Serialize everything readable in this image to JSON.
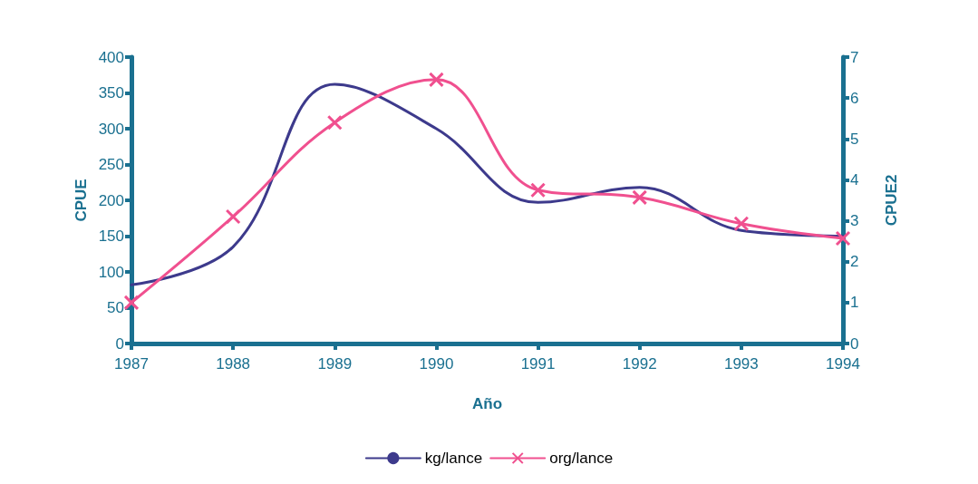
{
  "chart_data": {
    "type": "line",
    "xlabel": "Año",
    "ylabel": "CPUE",
    "y2label": "CPUE2",
    "categories": [
      "1987",
      "1988",
      "1989",
      "1990",
      "1991",
      "1992",
      "1993",
      "1994"
    ],
    "series": [
      {
        "name": "kg/lance",
        "color": "#3d3a8c",
        "marker": "none",
        "values": [
          82,
          135,
          362,
          300,
          197,
          218,
          158,
          150
        ]
      },
      {
        "name": "org/lance",
        "color": "#f0508f",
        "marker": "cross",
        "axis": "y2",
        "values": [
          1.0,
          3.1,
          5.4,
          6.45,
          3.75,
          3.57,
          2.93,
          2.57
        ]
      }
    ],
    "ylim": [
      0,
      400
    ],
    "yticks": [
      0,
      50,
      100,
      150,
      200,
      250,
      300,
      350,
      400
    ],
    "y2lim": [
      0,
      7
    ],
    "y2ticks": [
      0,
      1,
      2,
      3,
      4,
      5,
      6,
      7
    ],
    "grid": false,
    "legend": "bottom",
    "line_style": "solid"
  }
}
